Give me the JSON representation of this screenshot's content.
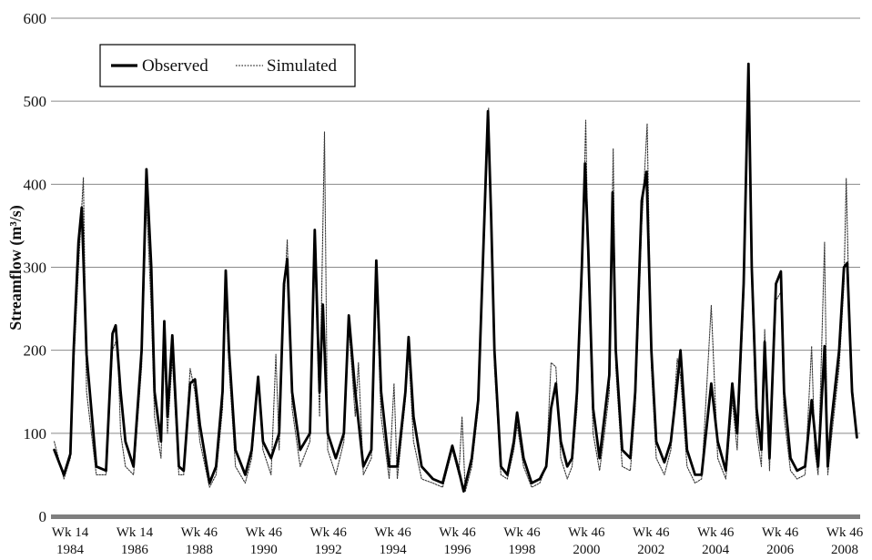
{
  "chart_data": {
    "type": "line",
    "title": "",
    "xlabel": "",
    "ylabel": "Streamflow (m³/s)",
    "ylim": [
      0,
      600
    ],
    "y_ticks": [
      0,
      100,
      200,
      300,
      400,
      500,
      600
    ],
    "grid": "horizontal",
    "legend_position": "top-left",
    "x_ticks": [
      {
        "line1": "Wk 14",
        "line2": "1984"
      },
      {
        "line1": "Wk 14",
        "line2": "1986"
      },
      {
        "line1": "Wk 46",
        "line2": "1988"
      },
      {
        "line1": "Wk 46",
        "line2": "1990"
      },
      {
        "line1": "Wk 46",
        "line2": "1992"
      },
      {
        "line1": "Wk 46",
        "line2": "1994"
      },
      {
        "line1": "Wk 46",
        "line2": "1996"
      },
      {
        "line1": "Wk 46",
        "line2": "1998"
      },
      {
        "line1": "Wk 46",
        "line2": "2000"
      },
      {
        "line1": "Wk 46",
        "line2": "2002"
      },
      {
        "line1": "Wk 46",
        "line2": "2004"
      },
      {
        "line1": "Wk 46",
        "line2": "2006"
      },
      {
        "line1": "Wk 46",
        "line2": "2008"
      }
    ],
    "series": [
      {
        "name": "Observed",
        "style": "solid-thick",
        "color": "#000000",
        "points": [
          [
            1984.0,
            80
          ],
          [
            1984.3,
            50
          ],
          [
            1984.5,
            75
          ],
          [
            1984.6,
            200
          ],
          [
            1984.75,
            330
          ],
          [
            1984.85,
            372
          ],
          [
            1985.0,
            195
          ],
          [
            1985.3,
            60
          ],
          [
            1985.6,
            55
          ],
          [
            1985.8,
            220
          ],
          [
            1985.9,
            230
          ],
          [
            1986.05,
            150
          ],
          [
            1986.2,
            90
          ],
          [
            1986.45,
            60
          ],
          [
            1986.7,
            200
          ],
          [
            1986.85,
            418
          ],
          [
            1987.0,
            300
          ],
          [
            1987.1,
            150
          ],
          [
            1987.3,
            90
          ],
          [
            1987.4,
            235
          ],
          [
            1987.5,
            120
          ],
          [
            1987.65,
            218
          ],
          [
            1987.85,
            60
          ],
          [
            1988.0,
            55
          ],
          [
            1988.2,
            160
          ],
          [
            1988.35,
            165
          ],
          [
            1988.5,
            110
          ],
          [
            1988.8,
            40
          ],
          [
            1989.0,
            60
          ],
          [
            1989.2,
            150
          ],
          [
            1989.3,
            296
          ],
          [
            1989.4,
            200
          ],
          [
            1989.6,
            80
          ],
          [
            1989.9,
            50
          ],
          [
            1990.1,
            80
          ],
          [
            1990.3,
            168
          ],
          [
            1990.45,
            90
          ],
          [
            1990.7,
            70
          ],
          [
            1990.95,
            100
          ],
          [
            1991.1,
            280
          ],
          [
            1991.2,
            310
          ],
          [
            1991.35,
            150
          ],
          [
            1991.6,
            80
          ],
          [
            1991.9,
            100
          ],
          [
            1992.05,
            345
          ],
          [
            1992.2,
            150
          ],
          [
            1992.3,
            255
          ],
          [
            1992.45,
            100
          ],
          [
            1992.7,
            70
          ],
          [
            1992.95,
            100
          ],
          [
            1993.1,
            242
          ],
          [
            1993.3,
            150
          ],
          [
            1993.55,
            60
          ],
          [
            1993.8,
            80
          ],
          [
            1993.95,
            308
          ],
          [
            1994.1,
            150
          ],
          [
            1994.35,
            60
          ],
          [
            1994.6,
            60
          ],
          [
            1994.85,
            150
          ],
          [
            1994.95,
            216
          ],
          [
            1995.1,
            120
          ],
          [
            1995.35,
            60
          ],
          [
            1995.7,
            45
          ],
          [
            1996.0,
            40
          ],
          [
            1996.3,
            85
          ],
          [
            1996.5,
            55
          ],
          [
            1996.65,
            30
          ],
          [
            1996.9,
            70
          ],
          [
            1997.1,
            140
          ],
          [
            1997.3,
            370
          ],
          [
            1997.4,
            488
          ],
          [
            1997.5,
            360
          ],
          [
            1997.6,
            200
          ],
          [
            1997.8,
            60
          ],
          [
            1998.0,
            50
          ],
          [
            1998.2,
            90
          ],
          [
            1998.3,
            125
          ],
          [
            1998.5,
            70
          ],
          [
            1998.75,
            40
          ],
          [
            1999.0,
            45
          ],
          [
            1999.2,
            60
          ],
          [
            1999.35,
            130
          ],
          [
            1999.5,
            160
          ],
          [
            1999.65,
            90
          ],
          [
            1999.85,
            60
          ],
          [
            2000.0,
            70
          ],
          [
            2000.15,
            150
          ],
          [
            2000.3,
            300
          ],
          [
            2000.4,
            425
          ],
          [
            2000.5,
            320
          ],
          [
            2000.65,
            130
          ],
          [
            2000.85,
            70
          ],
          [
            2001.0,
            120
          ],
          [
            2001.15,
            170
          ],
          [
            2001.25,
            390
          ],
          [
            2001.35,
            200
          ],
          [
            2001.55,
            80
          ],
          [
            2001.8,
            70
          ],
          [
            2001.95,
            150
          ],
          [
            2002.15,
            380
          ],
          [
            2002.3,
            415
          ],
          [
            2002.45,
            200
          ],
          [
            2002.6,
            90
          ],
          [
            2002.85,
            65
          ],
          [
            2003.05,
            90
          ],
          [
            2003.25,
            160
          ],
          [
            2003.35,
            200
          ],
          [
            2003.55,
            80
          ],
          [
            2003.8,
            50
          ],
          [
            2004.0,
            50
          ],
          [
            2004.3,
            160
          ],
          [
            2004.5,
            90
          ],
          [
            2004.75,
            55
          ],
          [
            2004.95,
            160
          ],
          [
            2005.1,
            100
          ],
          [
            2005.3,
            280
          ],
          [
            2005.45,
            545
          ],
          [
            2005.55,
            300
          ],
          [
            2005.7,
            130
          ],
          [
            2005.85,
            80
          ],
          [
            2005.95,
            210
          ],
          [
            2006.1,
            70
          ],
          [
            2006.3,
            280
          ],
          [
            2006.45,
            295
          ],
          [
            2006.55,
            150
          ],
          [
            2006.75,
            70
          ],
          [
            2006.95,
            55
          ],
          [
            2007.2,
            60
          ],
          [
            2007.4,
            140
          ],
          [
            2007.5,
            100
          ],
          [
            2007.6,
            60
          ],
          [
            2007.8,
            205
          ],
          [
            2007.9,
            60
          ],
          [
            2008.0,
            110
          ],
          [
            2008.25,
            200
          ],
          [
            2008.4,
            300
          ],
          [
            2008.5,
            305
          ],
          [
            2008.65,
            150
          ],
          [
            2008.8,
            95
          ]
        ]
      },
      {
        "name": "Simulated",
        "style": "dotted-thin",
        "color": "#333333",
        "points": [
          [
            1984.0,
            90
          ],
          [
            1984.3,
            45
          ],
          [
            1984.5,
            70
          ],
          [
            1984.6,
            180
          ],
          [
            1984.75,
            300
          ],
          [
            1984.9,
            408
          ],
          [
            1985.0,
            150
          ],
          [
            1985.3,
            50
          ],
          [
            1985.6,
            50
          ],
          [
            1985.8,
            200
          ],
          [
            1985.95,
            215
          ],
          [
            1986.05,
            100
          ],
          [
            1986.2,
            60
          ],
          [
            1986.45,
            50
          ],
          [
            1986.7,
            180
          ],
          [
            1986.85,
            380
          ],
          [
            1987.0,
            250
          ],
          [
            1987.1,
            120
          ],
          [
            1987.3,
            70
          ],
          [
            1987.4,
            200
          ],
          [
            1987.5,
            100
          ],
          [
            1987.65,
            190
          ],
          [
            1987.85,
            50
          ],
          [
            1988.0,
            50
          ],
          [
            1988.2,
            178
          ],
          [
            1988.35,
            150
          ],
          [
            1988.5,
            90
          ],
          [
            1988.8,
            35
          ],
          [
            1989.0,
            50
          ],
          [
            1989.2,
            130
          ],
          [
            1989.3,
            270
          ],
          [
            1989.4,
            180
          ],
          [
            1989.6,
            60
          ],
          [
            1989.9,
            40
          ],
          [
            1990.1,
            70
          ],
          [
            1990.3,
            160
          ],
          [
            1990.45,
            80
          ],
          [
            1990.7,
            50
          ],
          [
            1990.85,
            195
          ],
          [
            1990.95,
            80
          ],
          [
            1991.1,
            260
          ],
          [
            1991.2,
            333
          ],
          [
            1991.35,
            130
          ],
          [
            1991.6,
            60
          ],
          [
            1991.9,
            90
          ],
          [
            1992.05,
            320
          ],
          [
            1992.2,
            120
          ],
          [
            1992.35,
            463
          ],
          [
            1992.45,
            80
          ],
          [
            1992.7,
            50
          ],
          [
            1992.95,
            90
          ],
          [
            1993.1,
            230
          ],
          [
            1993.3,
            120
          ],
          [
            1993.4,
            185
          ],
          [
            1993.55,
            50
          ],
          [
            1993.8,
            70
          ],
          [
            1993.95,
            290
          ],
          [
            1994.1,
            120
          ],
          [
            1994.35,
            45
          ],
          [
            1994.5,
            160
          ],
          [
            1994.6,
            45
          ],
          [
            1994.85,
            140
          ],
          [
            1994.95,
            200
          ],
          [
            1995.1,
            90
          ],
          [
            1995.35,
            45
          ],
          [
            1995.7,
            40
          ],
          [
            1996.0,
            35
          ],
          [
            1996.3,
            80
          ],
          [
            1996.5,
            50
          ],
          [
            1996.6,
            120
          ],
          [
            1996.7,
            30
          ],
          [
            1996.9,
            60
          ],
          [
            1997.1,
            130
          ],
          [
            1997.3,
            350
          ],
          [
            1997.42,
            492
          ],
          [
            1997.5,
            340
          ],
          [
            1997.6,
            180
          ],
          [
            1997.8,
            50
          ],
          [
            1998.0,
            45
          ],
          [
            1998.2,
            80
          ],
          [
            1998.3,
            110
          ],
          [
            1998.5,
            60
          ],
          [
            1998.75,
            35
          ],
          [
            1999.0,
            40
          ],
          [
            1999.2,
            60
          ],
          [
            1999.35,
            185
          ],
          [
            1999.5,
            180
          ],
          [
            1999.65,
            70
          ],
          [
            1999.85,
            45
          ],
          [
            2000.0,
            60
          ],
          [
            2000.15,
            130
          ],
          [
            2000.3,
            280
          ],
          [
            2000.42,
            477
          ],
          [
            2000.5,
            300
          ],
          [
            2000.65,
            100
          ],
          [
            2000.85,
            55
          ],
          [
            2001.0,
            100
          ],
          [
            2001.15,
            150
          ],
          [
            2001.27,
            443
          ],
          [
            2001.35,
            180
          ],
          [
            2001.55,
            60
          ],
          [
            2001.8,
            55
          ],
          [
            2001.95,
            130
          ],
          [
            2002.15,
            350
          ],
          [
            2002.32,
            473
          ],
          [
            2002.45,
            180
          ],
          [
            2002.6,
            70
          ],
          [
            2002.85,
            50
          ],
          [
            2003.05,
            80
          ],
          [
            2003.25,
            190
          ],
          [
            2003.35,
            170
          ],
          [
            2003.55,
            60
          ],
          [
            2003.8,
            40
          ],
          [
            2004.0,
            45
          ],
          [
            2004.3,
            254
          ],
          [
            2004.5,
            70
          ],
          [
            2004.75,
            45
          ],
          [
            2004.95,
            140
          ],
          [
            2005.1,
            80
          ],
          [
            2005.3,
            260
          ],
          [
            2005.45,
            530
          ],
          [
            2005.55,
            280
          ],
          [
            2005.7,
            100
          ],
          [
            2005.85,
            60
          ],
          [
            2005.95,
            225
          ],
          [
            2006.1,
            55
          ],
          [
            2006.3,
            260
          ],
          [
            2006.45,
            270
          ],
          [
            2006.55,
            120
          ],
          [
            2006.75,
            55
          ],
          [
            2006.95,
            45
          ],
          [
            2007.2,
            50
          ],
          [
            2007.4,
            205
          ],
          [
            2007.5,
            80
          ],
          [
            2007.6,
            50
          ],
          [
            2007.8,
            330
          ],
          [
            2007.9,
            50
          ],
          [
            2008.0,
            90
          ],
          [
            2008.25,
            180
          ],
          [
            2008.4,
            280
          ],
          [
            2008.47,
            407
          ],
          [
            2008.6,
            180
          ],
          [
            2008.8,
            100
          ]
        ]
      }
    ]
  }
}
